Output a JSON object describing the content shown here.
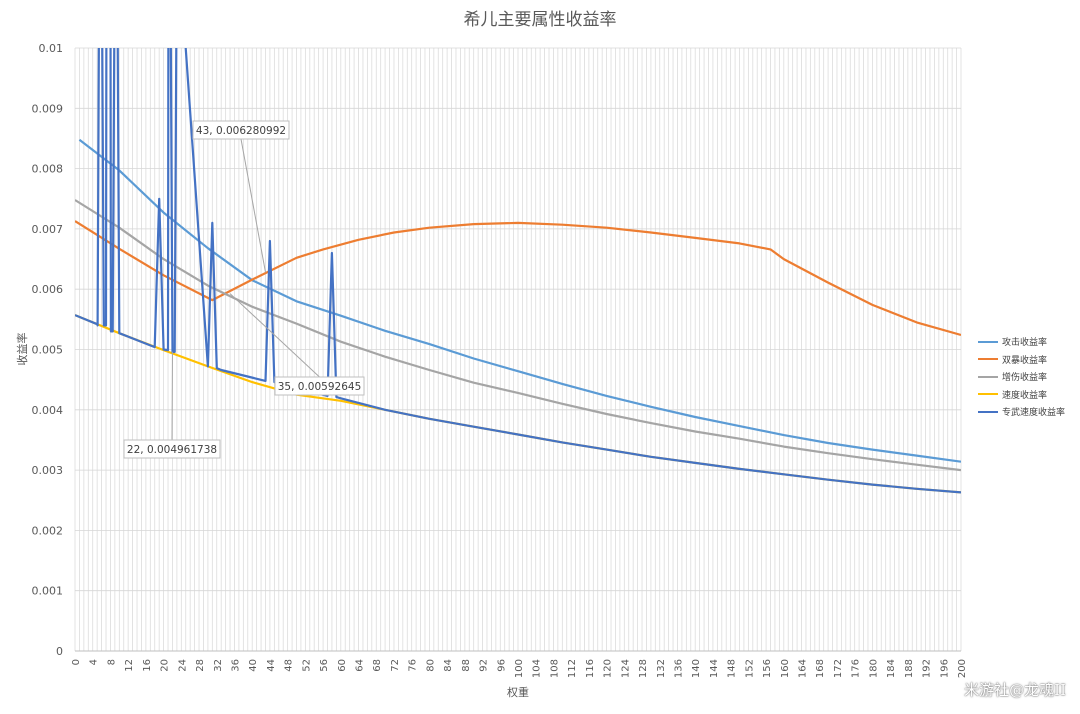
{
  "chart_data": {
    "type": "line",
    "title": "希儿主要属性收益率",
    "xlabel": "权重",
    "ylabel": "收益率",
    "xlim": [
      0,
      200
    ],
    "ylim": [
      0,
      0.01
    ],
    "x_ticks": [
      "0",
      "4",
      "8",
      "12",
      "16",
      "20",
      "24",
      "28",
      "32",
      "36",
      "40",
      "44",
      "48",
      "52",
      "56",
      "60",
      "64",
      "68",
      "72",
      "76",
      "80",
      "84",
      "88",
      "92",
      "96",
      "100",
      "104",
      "108",
      "112",
      "116",
      "120",
      "124",
      "128",
      "132",
      "136",
      "140",
      "144",
      "148",
      "152",
      "156",
      "160",
      "164",
      "168",
      "172",
      "176",
      "180",
      "184",
      "188",
      "192",
      "196",
      "200"
    ],
    "y_ticks": [
      "0",
      "0.001",
      "0.002",
      "0.003",
      "0.004",
      "0.005",
      "0.006",
      "0.007",
      "0.008",
      "0.009",
      "0.01"
    ],
    "grid": true,
    "legend_position": "right",
    "series": [
      {
        "name": "攻击收益率",
        "color": "#5b9bd5",
        "x": [
          1,
          10,
          20,
          30,
          40,
          50,
          60,
          70,
          80,
          90,
          100,
          110,
          120,
          130,
          140,
          150,
          160,
          170,
          180,
          190,
          200
        ],
        "y": [
          0.00848,
          0.00797,
          0.00727,
          0.00668,
          0.00615,
          0.0058,
          0.00556,
          0.00531,
          0.00509,
          0.00485,
          0.00464,
          0.00443,
          0.00423,
          0.00405,
          0.00388,
          0.00373,
          0.00358,
          0.00345,
          0.00334,
          0.00324,
          0.00314
        ]
      },
      {
        "name": "双暴收益率",
        "color": "#ed7d31",
        "x": [
          0,
          10,
          20,
          31,
          40,
          50,
          56,
          64,
          72,
          80,
          90,
          100,
          110,
          120,
          130,
          140,
          150,
          157,
          160,
          170,
          180,
          190,
          200
        ],
        "y": [
          0.00713,
          0.00667,
          0.00623,
          0.00582,
          0.00616,
          0.00652,
          0.00666,
          0.00682,
          0.00694,
          0.00702,
          0.00708,
          0.0071,
          0.00707,
          0.00702,
          0.00694,
          0.00685,
          0.00676,
          0.00666,
          0.0065,
          0.00611,
          0.00574,
          0.00545,
          0.00524
        ]
      },
      {
        "name": "增伤收益率",
        "color": "#a5a5a5",
        "x": [
          0,
          10,
          20,
          30,
          40,
          50,
          60,
          70,
          80,
          90,
          100,
          110,
          120,
          130,
          140,
          150,
          160,
          170,
          180,
          190,
          200
        ],
        "y": [
          0.00748,
          0.00702,
          0.0065,
          0.00606,
          0.00571,
          0.00543,
          0.00513,
          0.00488,
          0.00466,
          0.00445,
          0.00428,
          0.0041,
          0.00393,
          0.00378,
          0.00364,
          0.00352,
          0.00339,
          0.00328,
          0.00318,
          0.00309,
          0.003
        ]
      },
      {
        "name": "速度收益率",
        "color": "#ffc000",
        "x": [
          0,
          10,
          20,
          30,
          40,
          50,
          60,
          70,
          80,
          90,
          100,
          110,
          120,
          130,
          140,
          150,
          160,
          170,
          180,
          190,
          200
        ],
        "y": [
          0.00557,
          0.00527,
          0.00499,
          0.00472,
          0.00446,
          0.00425,
          0.00415,
          0.004,
          0.00385,
          0.00372,
          0.00359,
          0.00346,
          0.00334,
          0.00322,
          0.00312,
          0.00302,
          0.00293,
          0.00284,
          0.00276,
          0.00269,
          0.00263
        ]
      },
      {
        "name": "专武速度收益率",
        "color": "#4472c4",
        "x": [
          0,
          5,
          5.1,
          5.5,
          6,
          6.5,
          7,
          7.1,
          8,
          8.1,
          8.5,
          9,
          9.5,
          10,
          18,
          19,
          20,
          21,
          21.1,
          21.5,
          22,
          22.5,
          23,
          23.1,
          30,
          31,
          32,
          33,
          43,
          44,
          45,
          46,
          57,
          58,
          59,
          60,
          70,
          80,
          90,
          100,
          110,
          120,
          130,
          140,
          150,
          160,
          170,
          180,
          190,
          200
        ],
        "y": [
          0.00557,
          0.00542,
          0.0054,
          0.012,
          0.012,
          0.0054,
          0.0054,
          0.012,
          0.012,
          0.0053,
          0.0053,
          0.012,
          0.012,
          0.00527,
          0.00504,
          0.0075,
          0.005,
          0.00499,
          0.012,
          0.012,
          0.00496,
          0.00496,
          0.012,
          0.012,
          0.00472,
          0.0071,
          0.00469,
          0.00466,
          0.00448,
          0.0068,
          0.00446,
          0.00443,
          0.00423,
          0.0066,
          0.00421,
          0.00419,
          0.004,
          0.00385,
          0.00372,
          0.00359,
          0.00346,
          0.00334,
          0.00322,
          0.00312,
          0.00302,
          0.00293,
          0.00284,
          0.00276,
          0.00269,
          0.00263
        ]
      }
    ],
    "annotations": [
      {
        "text": "43, 0.006280992",
        "x": 43,
        "y": 0.006280992
      },
      {
        "text": "35, 0.00592645",
        "x": 35,
        "y": 0.00592645
      },
      {
        "text": "22, 0.004961738",
        "x": 22,
        "y": 0.004961738
      }
    ]
  },
  "watermark": "米游社@龙魂II"
}
